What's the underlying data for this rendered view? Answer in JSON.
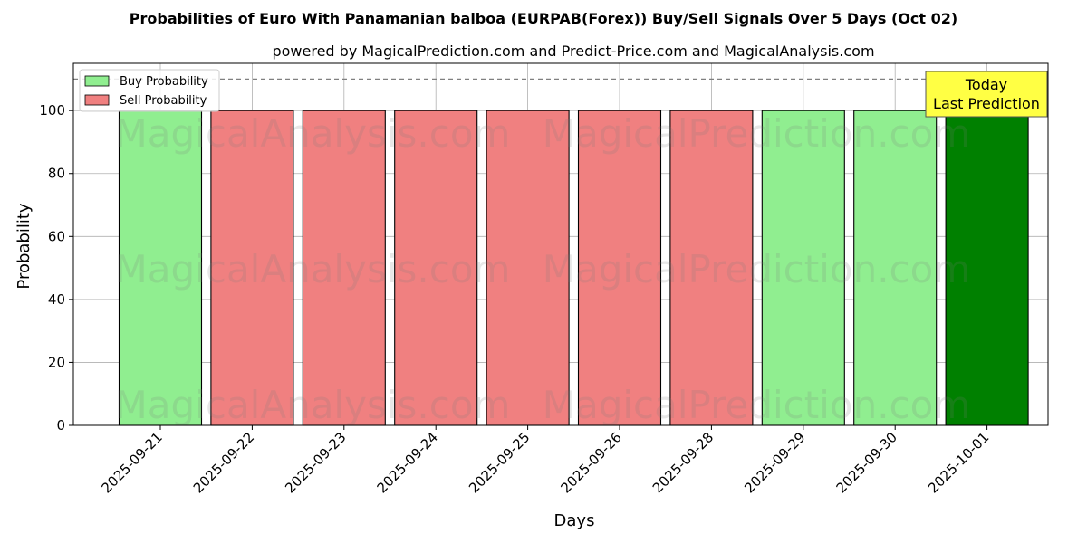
{
  "chart_data": {
    "type": "bar",
    "title": "Probabilities of Euro With Panamanian balboa (EURPAB(Forex)) Buy/Sell Signals Over 5 Days (Oct 02)",
    "subtitle": "powered by MagicalPrediction.com and Predict-Price.com and MagicalAnalysis.com",
    "xlabel": "Days",
    "ylabel": "Probability",
    "ylim": [
      0,
      115
    ],
    "yticks": [
      0,
      20,
      40,
      60,
      80,
      100
    ],
    "grid": true,
    "legend_position": "top-left",
    "reference_line": 110,
    "categories": [
      "2025-09-21",
      "2025-09-22",
      "2025-09-23",
      "2025-09-24",
      "2025-09-25",
      "2025-09-26",
      "2025-09-28",
      "2025-09-29",
      "2025-09-30",
      "2025-10-01"
    ],
    "values": [
      100,
      100,
      100,
      100,
      100,
      100,
      100,
      100,
      100,
      100
    ],
    "signals": [
      "buy",
      "sell",
      "sell",
      "sell",
      "sell",
      "sell",
      "sell",
      "buy",
      "buy",
      "buy-today"
    ],
    "series": [
      {
        "name": "Buy Probability",
        "color": "#90ee90"
      },
      {
        "name": "Sell Probability",
        "color": "#f08080"
      }
    ],
    "today_color": "#008000",
    "annotation": {
      "line1": "Today",
      "line2": "Last Prediction",
      "color": "#ffff44"
    },
    "watermarks": [
      "MagicalAnalysis.com",
      "MagicalPrediction.com",
      "MagicalAnalysis.com",
      "MagicalPrediction.com",
      "MagicalAnalysis.com",
      "MagicalPrediction.com"
    ]
  }
}
